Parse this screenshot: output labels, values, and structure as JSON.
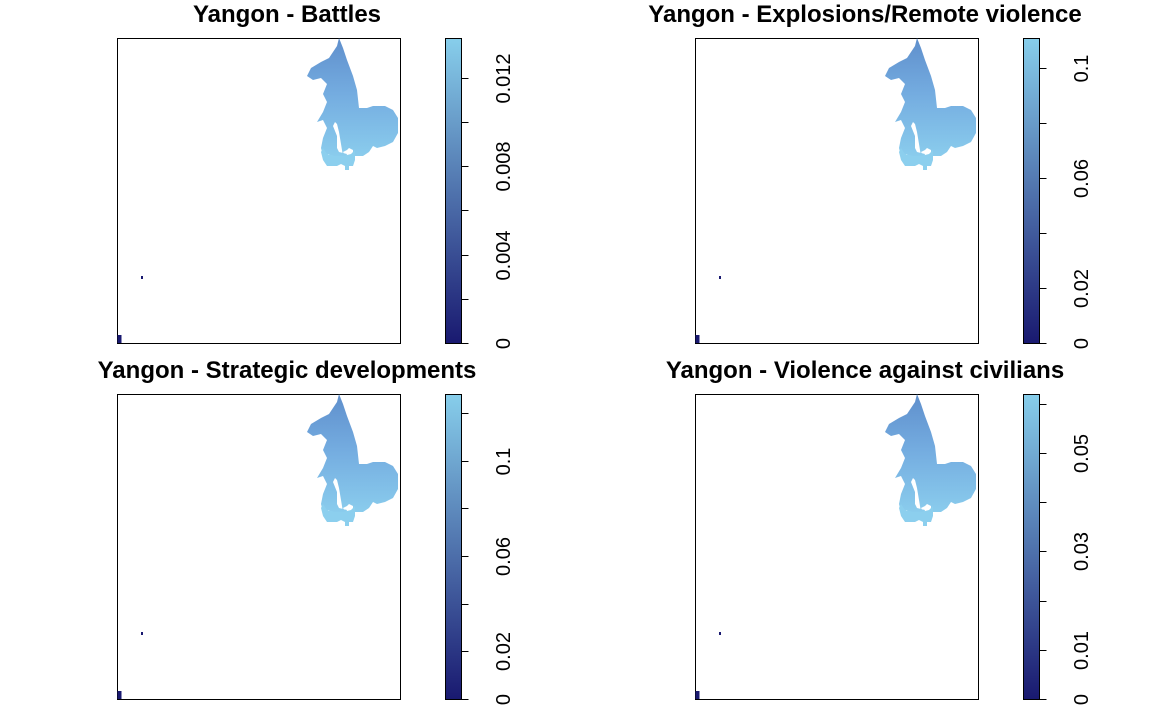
{
  "colors": {
    "low": "#191970",
    "high": "#87CEEB",
    "frame": "#000000",
    "background": "#ffffff"
  },
  "chart_data": [
    {
      "type": "heatmap",
      "title": "Yangon -  Battles",
      "legend_range": [
        0,
        0.0138
      ],
      "legend_ticks": [
        {
          "value": 0,
          "label": "0"
        },
        {
          "value": 0.004,
          "label": "0.004"
        },
        {
          "value": 0.008,
          "label": "0.008"
        },
        {
          "value": 0.012,
          "label": "0.012"
        }
      ],
      "minor_ticks": [
        0.002,
        0.006,
        0.01
      ]
    },
    {
      "type": "heatmap",
      "title": "Yangon -  Explosions/Remote violence",
      "legend_range": [
        0,
        0.111
      ],
      "legend_ticks": [
        {
          "value": 0,
          "label": "0"
        },
        {
          "value": 0.02,
          "label": "0.02"
        },
        {
          "value": 0.06,
          "label": "0.06"
        },
        {
          "value": 0.1,
          "label": "0.1"
        }
      ],
      "minor_ticks": [
        0.04,
        0.08
      ]
    },
    {
      "type": "heatmap",
      "title": "Yangon -  Strategic developments",
      "legend_range": [
        0,
        0.128
      ],
      "legend_ticks": [
        {
          "value": 0,
          "label": "0"
        },
        {
          "value": 0.02,
          "label": "0.02"
        },
        {
          "value": 0.06,
          "label": "0.06"
        },
        {
          "value": 0.1,
          "label": "0.1"
        }
      ],
      "minor_ticks": [
        0.04,
        0.08,
        0.12
      ]
    },
    {
      "type": "heatmap",
      "title": "Yangon -  Violence against civilians",
      "legend_range": [
        0,
        0.062
      ],
      "legend_ticks": [
        {
          "value": 0,
          "label": "0"
        },
        {
          "value": 0.01,
          "label": "0.01"
        },
        {
          "value": 0.03,
          "label": "0.03"
        },
        {
          "value": 0.05,
          "label": "0.05"
        }
      ],
      "minor_ticks": [
        0.02,
        0.04,
        0.06
      ]
    }
  ]
}
